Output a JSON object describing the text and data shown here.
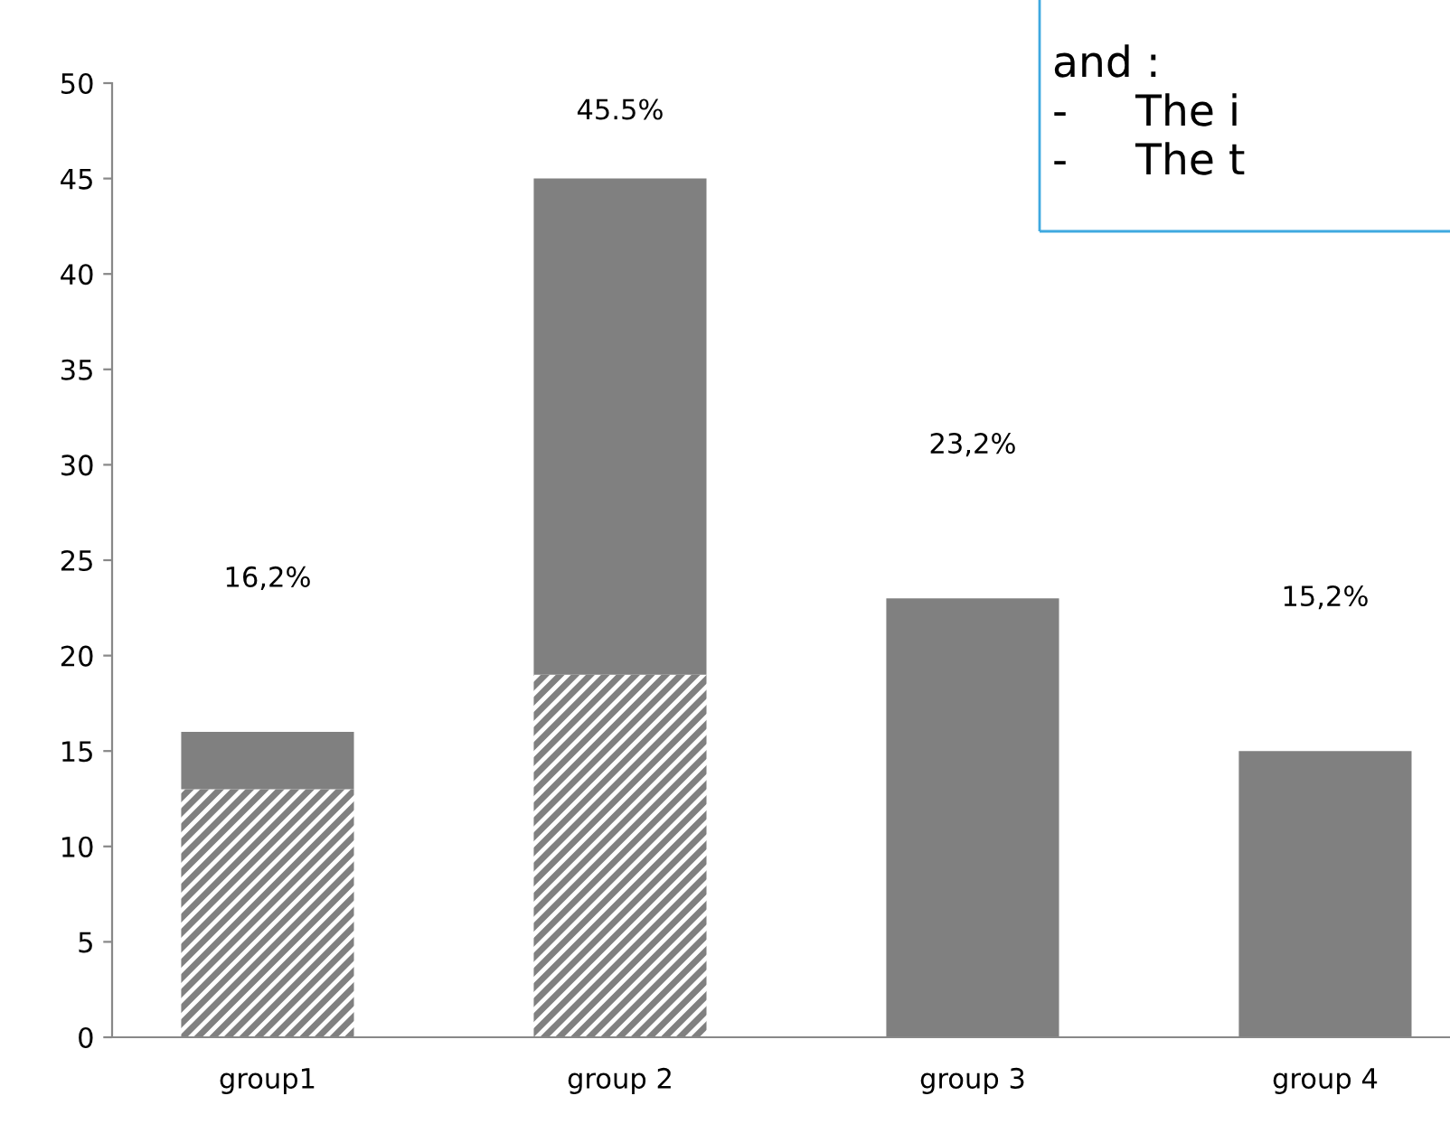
{
  "chart_data": {
    "type": "bar",
    "stacked": true,
    "categories": [
      "group1",
      "group 2",
      "group 3",
      "group 4"
    ],
    "series": [
      {
        "color": "#808080",
        "values": [
          13,
          19,
          null,
          null
        ]
      },
      {
        "color": "#808080",
        "values": [
          3,
          26,
          23,
          15
        ]
      }
    ],
    "ylim": [
      0,
      50
    ],
    "yticks": [
      0,
      5,
      10,
      15,
      20,
      25,
      30,
      35,
      40,
      45,
      50
    ],
    "grid": false,
    "legend": false,
    "annotations": [
      "16,2%",
      "45.5%",
      "23,2%",
      "15,2%",
      "and :",
      "-     The i",
      "-     The t"
    ]
  }
}
